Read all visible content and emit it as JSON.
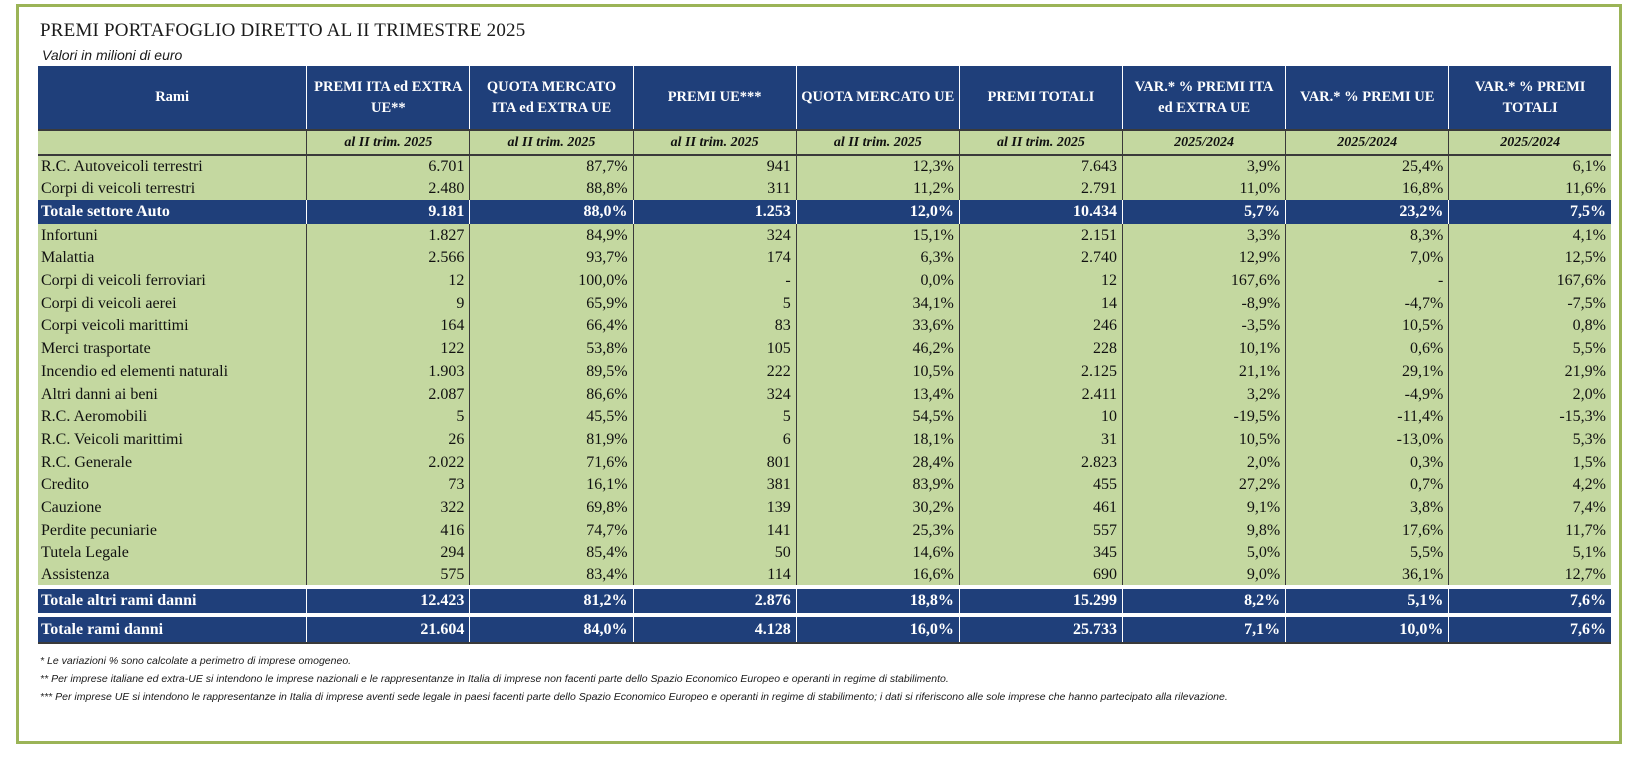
{
  "title": "PREMI PORTAFOGLIO DIRETTO AL II TRIMESTRE 2025",
  "subtitle": "Valori in milioni di euro",
  "header": [
    "Rami",
    "PREMI ITA ed EXTRA UE**",
    "QUOTA MERCATO ITA ed EXTRA UE",
    "PREMI UE***",
    "QUOTA MERCATO UE",
    "PREMI TOTALI",
    "VAR.* % PREMI ITA ed EXTRA UE",
    "VAR.* % PREMI UE",
    "VAR.* % PREMI TOTALI"
  ],
  "subheader": [
    "",
    "al II trim. 2025",
    "al II trim. 2025",
    "al II trim. 2025",
    "al II trim. 2025",
    "al II trim. 2025",
    "2025/2024",
    "2025/2024",
    "2025/2024"
  ],
  "rows": [
    [
      "R.C. Autoveicoli terrestri",
      "6.701",
      "87,7%",
      "941",
      "12,3%",
      "7.643",
      "3,9%",
      "25,4%",
      "6,1%"
    ],
    [
      "Corpi di veicoli terrestri",
      "2.480",
      "88,8%",
      "311",
      "11,2%",
      "2.791",
      "11,0%",
      "16,8%",
      "11,6%"
    ],
    [
      "Totale settore Auto",
      "9.181",
      "88,0%",
      "1.253",
      "12,0%",
      "10.434",
      "5,7%",
      "23,2%",
      "7,5%"
    ],
    [
      "Infortuni",
      "1.827",
      "84,9%",
      "324",
      "15,1%",
      "2.151",
      "3,3%",
      "8,3%",
      "4,1%"
    ],
    [
      "Malattia",
      "2.566",
      "93,7%",
      "174",
      "6,3%",
      "2.740",
      "12,9%",
      "7,0%",
      "12,5%"
    ],
    [
      "Corpi di veicoli ferroviari",
      "12",
      "100,0%",
      "-",
      "0,0%",
      "12",
      "167,6%",
      "-",
      "167,6%"
    ],
    [
      "Corpi di veicoli aerei",
      "9",
      "65,9%",
      "5",
      "34,1%",
      "14",
      "-8,9%",
      "-4,7%",
      "-7,5%"
    ],
    [
      "Corpi veicoli marittimi",
      "164",
      "66,4%",
      "83",
      "33,6%",
      "246",
      "-3,5%",
      "10,5%",
      "0,8%"
    ],
    [
      "Merci trasportate",
      "122",
      "53,8%",
      "105",
      "46,2%",
      "228",
      "10,1%",
      "0,6%",
      "5,5%"
    ],
    [
      "Incendio ed elementi naturali",
      "1.903",
      "89,5%",
      "222",
      "10,5%",
      "2.125",
      "21,1%",
      "29,1%",
      "21,9%"
    ],
    [
      "Altri danni ai beni",
      "2.087",
      "86,6%",
      "324",
      "13,4%",
      "2.411",
      "3,2%",
      "-4,9%",
      "2,0%"
    ],
    [
      "R.C. Aeromobili",
      "5",
      "45,5%",
      "5",
      "54,5%",
      "10",
      "-19,5%",
      "-11,4%",
      "-15,3%"
    ],
    [
      "R.C. Veicoli marittimi",
      "26",
      "81,9%",
      "6",
      "18,1%",
      "31",
      "10,5%",
      "-13,0%",
      "5,3%"
    ],
    [
      "R.C. Generale",
      "2.022",
      "71,6%",
      "801",
      "28,4%",
      "2.823",
      "2,0%",
      "0,3%",
      "1,5%"
    ],
    [
      "Credito",
      "73",
      "16,1%",
      "381",
      "83,9%",
      "455",
      "27,2%",
      "0,7%",
      "4,2%"
    ],
    [
      "Cauzione",
      "322",
      "69,8%",
      "139",
      "30,2%",
      "461",
      "9,1%",
      "3,8%",
      "7,4%"
    ],
    [
      "Perdite pecuniarie",
      "416",
      "74,7%",
      "141",
      "25,3%",
      "557",
      "9,8%",
      "17,6%",
      "11,7%"
    ],
    [
      "Tutela Legale",
      "294",
      "85,4%",
      "50",
      "14,6%",
      "345",
      "5,0%",
      "5,5%",
      "5,1%"
    ],
    [
      "Assistenza",
      "575",
      "83,4%",
      "114",
      "16,6%",
      "690",
      "9,0%",
      "36,1%",
      "12,7%"
    ],
    [
      "Totale altri rami danni",
      "12.423",
      "81,2%",
      "2.876",
      "18,8%",
      "15.299",
      "8,2%",
      "5,1%",
      "7,6%"
    ],
    [
      "Totale rami danni",
      "21.604",
      "84,0%",
      "4.128",
      "16,0%",
      "25.733",
      "7,1%",
      "10,0%",
      "7,6%"
    ]
  ],
  "notes": [
    "* Le variazioni % sono calcolate a perimetro di imprese omogeneo.",
    "** Per imprese italiane ed extra-UE si intendono le imprese nazionali e le rappresentanze in Italia di imprese non facenti parte dello Spazio Economico Europeo e operanti in regime di stabilimento.",
    "*** Per imprese UE si intendono le rappresentanze in Italia di imprese aventi sede legale in paesi facenti parte dello Spazio Economico Europeo e operanti in regime di stabilimento; i dati si riferiscono alle sole imprese che hanno partecipato alla rilevazione."
  ],
  "colors": {
    "header_blue": "#1f3f7a",
    "row_green": "#c4d8a0",
    "frame_green": "#9bb457"
  }
}
